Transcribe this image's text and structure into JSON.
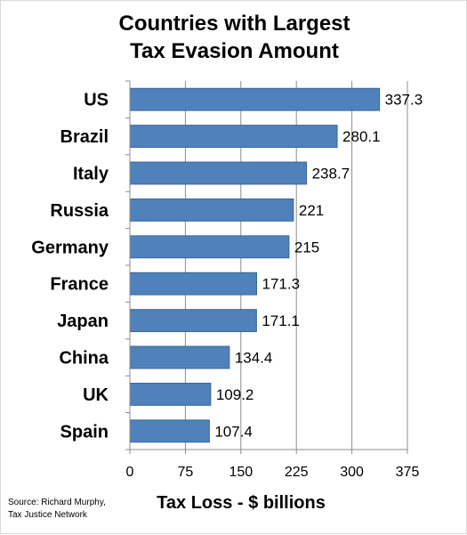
{
  "chart_data": {
    "type": "bar",
    "orientation": "horizontal",
    "title_lines": [
      "Countries with Largest",
      "Tax Evasion Amount"
    ],
    "categories": [
      "US",
      "Brazil",
      "Italy",
      "Russia",
      "Germany",
      "France",
      "Japan",
      "China",
      "UK",
      "Spain"
    ],
    "values": [
      337.3,
      280.1,
      238.7,
      221,
      215,
      171.3,
      171.1,
      134.4,
      109.2,
      107.4
    ],
    "value_labels": [
      "337.3",
      "280.1",
      "238.7",
      "221",
      "215",
      "171.3",
      "171.1",
      "134.4",
      "109.2",
      "107.4"
    ],
    "xlabel": "Tax Loss - $ billions",
    "ylabel": "",
    "xlim": [
      0,
      375
    ],
    "x_ticks": [
      0,
      75,
      150,
      225,
      300,
      375
    ],
    "x_tick_labels": [
      "0",
      "75",
      "150",
      "225",
      "300",
      "375"
    ],
    "grid": "vertical",
    "legend": "none",
    "bar_color": "#4f81bd",
    "bar_border_color": "#3a6594",
    "grid_color": "#8c8c8c"
  },
  "source": {
    "line1": "Source: Richard Murphy,",
    "line2": "Tax Justice  Network"
  }
}
